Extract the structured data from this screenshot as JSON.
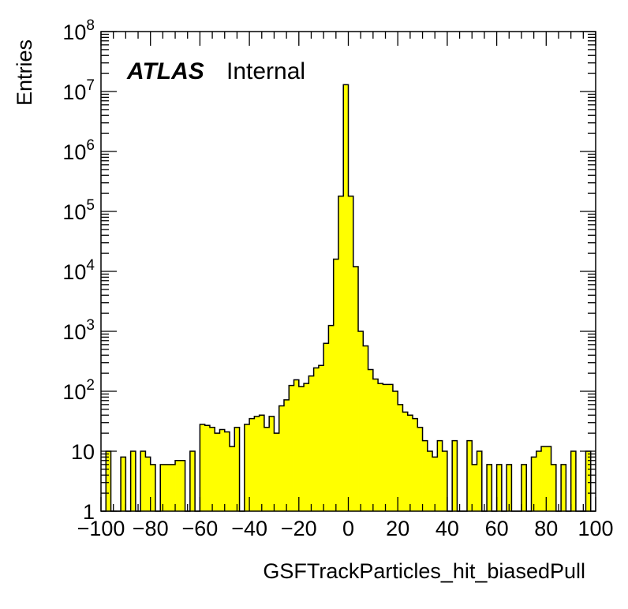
{
  "chart_data": {
    "type": "bar",
    "title": "",
    "xlabel": "GSFTrackParticles_hit_biasedPull",
    "ylabel": "Entries",
    "xlim": [
      -100,
      100
    ],
    "ylim": [
      1,
      100000000
    ],
    "yscale": "log",
    "bin_width": 2,
    "bar_color": "#ffff00",
    "edge_color": "#000000",
    "grid": false,
    "legend": "none",
    "annotation": {
      "experiment": "ATLAS",
      "status": "Internal"
    },
    "x_tick_labels": [
      "−100",
      "−80",
      "−60",
      "−40",
      "−20",
      "0",
      "20",
      "40",
      "60",
      "80",
      "100"
    ],
    "x_tick_values": [
      -100,
      -80,
      -60,
      -40,
      -20,
      0,
      20,
      40,
      60,
      80,
      100
    ],
    "y_tick_labels": [
      {
        "base": "1",
        "exp": ""
      },
      {
        "base": "10",
        "exp": ""
      },
      {
        "base": "10",
        "exp": "2"
      },
      {
        "base": "10",
        "exp": "3"
      },
      {
        "base": "10",
        "exp": "4"
      },
      {
        "base": "10",
        "exp": "5"
      },
      {
        "base": "10",
        "exp": "6"
      },
      {
        "base": "10",
        "exp": "7"
      },
      {
        "base": "10",
        "exp": "8"
      }
    ],
    "y_tick_values": [
      1,
      10,
      100,
      1000,
      10000,
      100000,
      1000000,
      10000000,
      100000000
    ],
    "bin_edges_start": -100,
    "values": [
      0,
      10,
      0,
      0,
      8,
      0,
      10,
      0,
      10,
      8,
      6,
      0,
      6,
      6,
      6,
      7,
      7,
      0,
      10,
      0,
      28,
      27,
      25,
      20,
      23,
      21,
      12,
      25,
      0,
      28,
      35,
      38,
      40,
      25,
      38,
      20,
      57,
      72,
      125,
      155,
      120,
      135,
      180,
      245,
      270,
      630,
      1250,
      16000,
      180000,
      13000000,
      180000,
      12000,
      1000,
      570,
      230,
      160,
      135,
      130,
      130,
      100,
      60,
      45,
      40,
      35,
      25,
      15,
      10,
      8,
      15,
      10,
      0,
      15,
      0,
      0,
      15,
      6,
      10,
      0,
      6,
      0,
      6,
      0,
      6,
      0,
      0,
      6,
      0,
      8,
      10,
      12,
      12,
      6,
      0,
      6,
      0,
      10,
      0,
      0,
      10,
      0
    ]
  }
}
